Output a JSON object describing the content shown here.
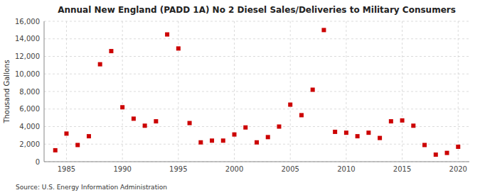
{
  "chart_data": {
    "type": "scatter",
    "title": "Annual New England (PADD 1A) No 2 Diesel Sales/Deliveries to Military Consumers",
    "ylabel": "Thousand Gallons",
    "source": "Source: U.S. Energy Information Administration",
    "x": [
      1984,
      1985,
      1986,
      1987,
      1988,
      1989,
      1990,
      1991,
      1992,
      1993,
      1994,
      1995,
      1996,
      1997,
      1998,
      1999,
      2000,
      2001,
      2002,
      2003,
      2004,
      2005,
      2006,
      2007,
      2008,
      2009,
      2010,
      2011,
      2012,
      2013,
      2014,
      2015,
      2016,
      2017,
      2018,
      2019,
      2020
    ],
    "values": [
      1300,
      3200,
      1900,
      2900,
      11100,
      12600,
      6200,
      4900,
      4100,
      4600,
      14500,
      12900,
      4400,
      2200,
      2400,
      2400,
      3100,
      3900,
      2200,
      2800,
      4000,
      6500,
      5300,
      8200,
      15000,
      3400,
      3300,
      2900,
      3300,
      2700,
      4600,
      4700,
      4100,
      1900,
      800,
      1000,
      1700
    ],
    "color": "#cc0000",
    "marker": "square",
    "xlim": [
      1983,
      2021
    ],
    "ylim": [
      0,
      16000
    ],
    "xticks": [
      1985,
      1990,
      1995,
      2000,
      2005,
      2010,
      2015,
      2020
    ],
    "yticks": [
      0,
      {
        "value": 2000,
        "label": "2,000"
      },
      {
        "value": 4000,
        "label": "4,000"
      },
      {
        "value": 6000,
        "label": "6,000"
      },
      {
        "value": 8000,
        "label": "8,000"
      },
      {
        "value": 10000,
        "label": "10,000"
      },
      {
        "value": 12000,
        "label": "12,000"
      },
      {
        "value": 14000,
        "label": "14,000"
      },
      {
        "value": 16000,
        "label": "16,000"
      }
    ],
    "grid": true
  }
}
